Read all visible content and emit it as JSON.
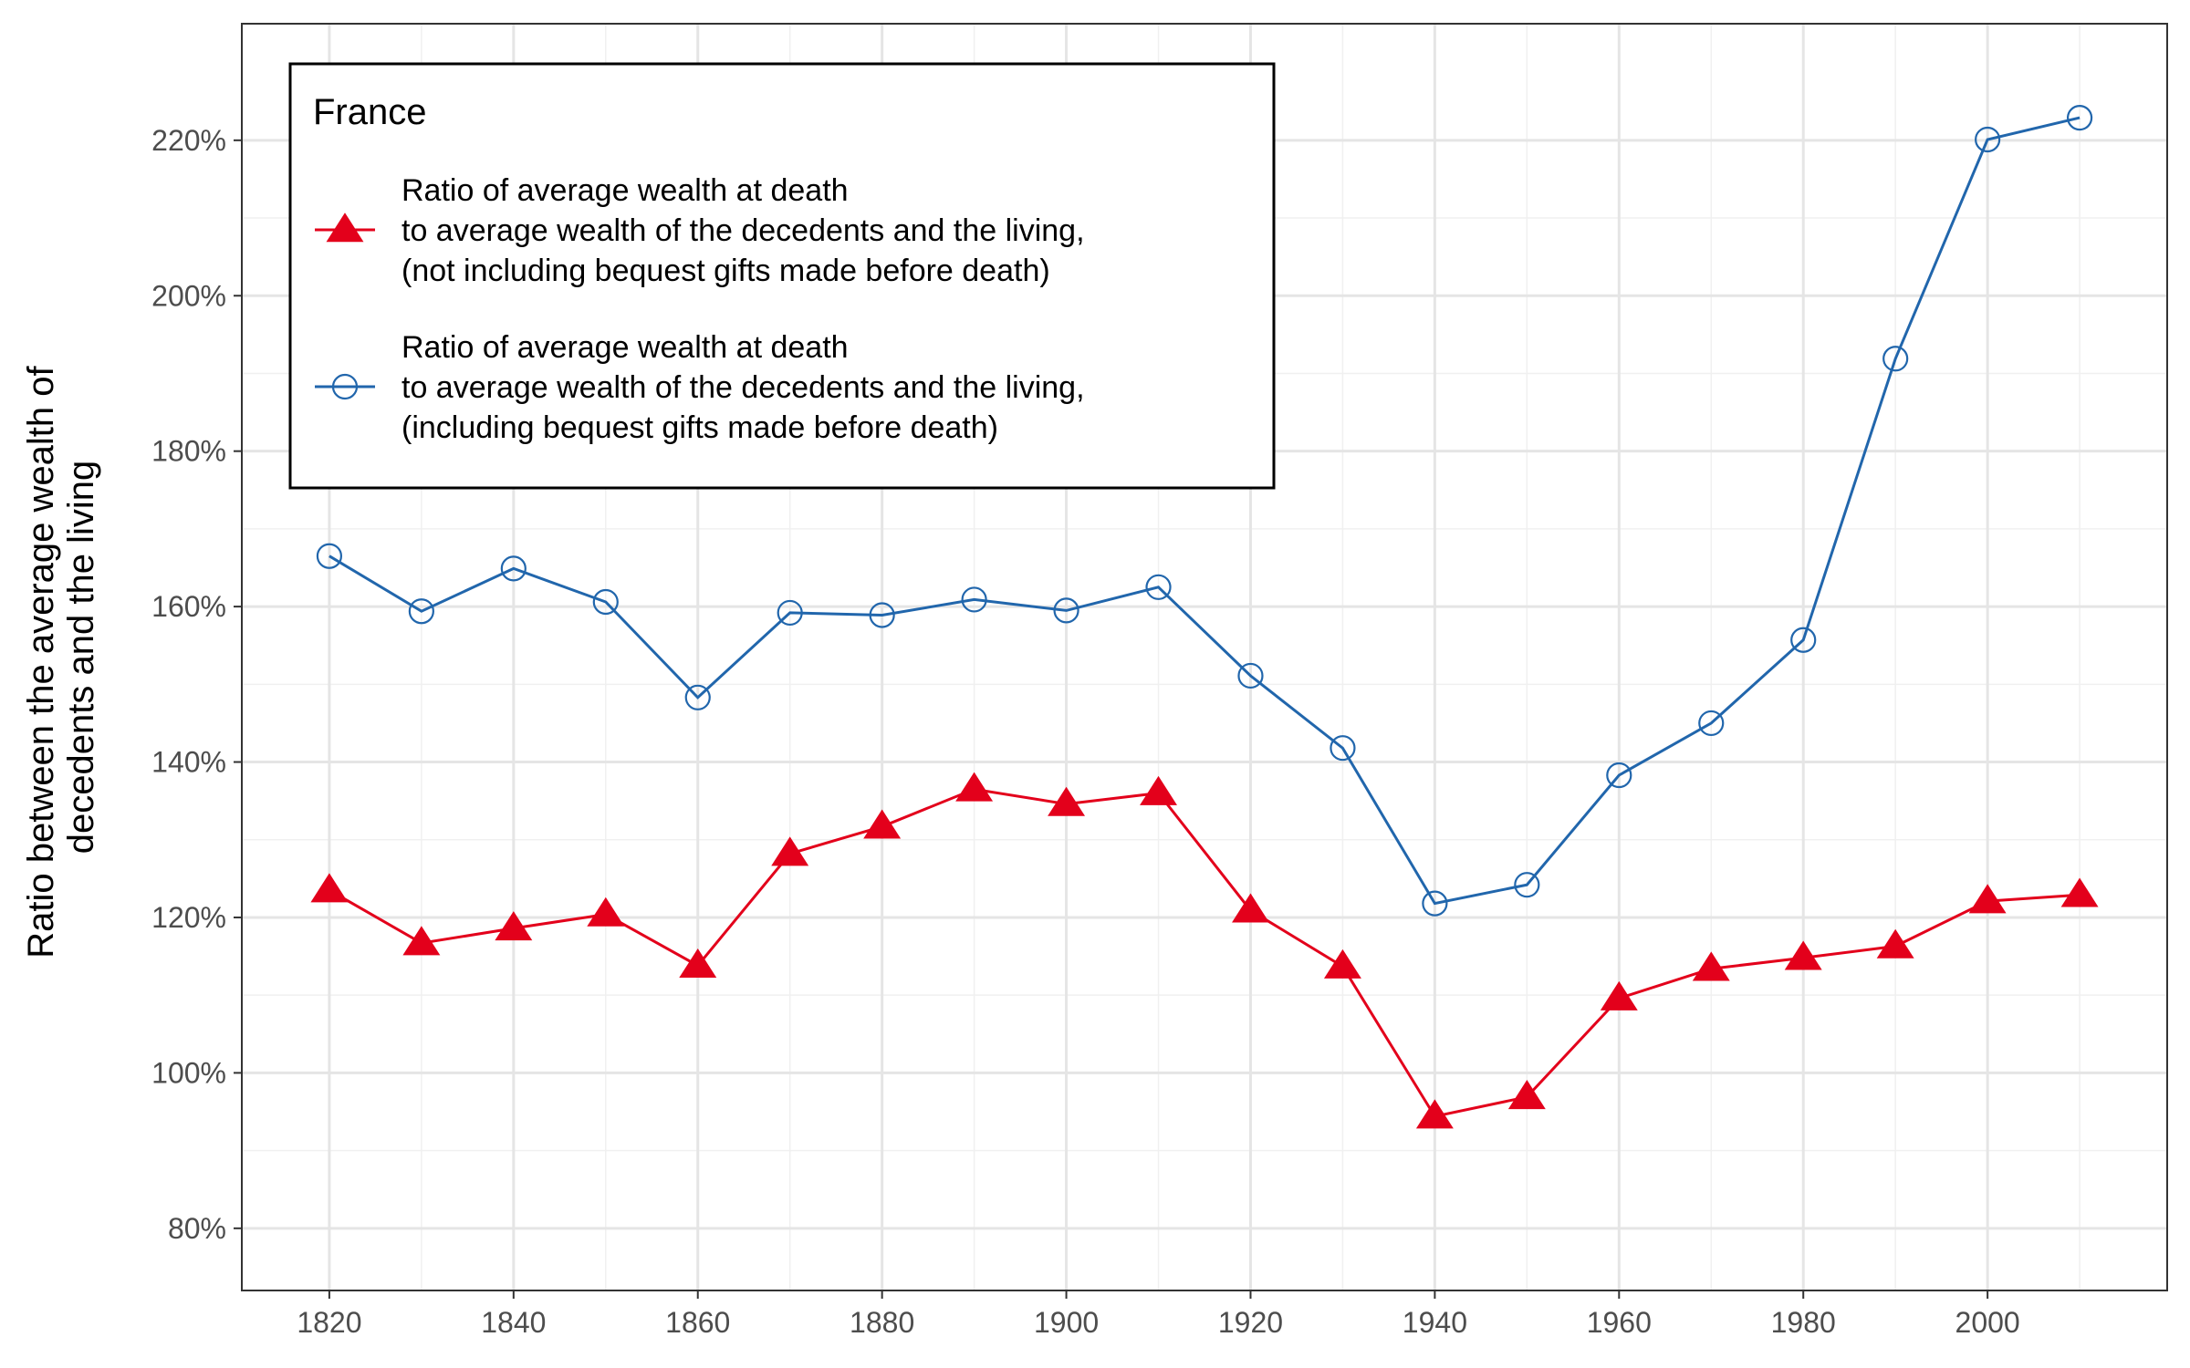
{
  "chart_data": {
    "type": "line",
    "ylabel_lines": [
      "Ratio between the average wealth of",
      "decedents and the living"
    ],
    "xlabel": "",
    "x": [
      1820,
      1830,
      1840,
      1850,
      1860,
      1870,
      1880,
      1890,
      1900,
      1910,
      1920,
      1930,
      1940,
      1950,
      1960,
      1970,
      1980,
      1990,
      2000,
      2010
    ],
    "xlim": [
      1810.5,
      2019.5
    ],
    "ylim": [
      72,
      235
    ],
    "x_ticks": [
      1820,
      1840,
      1860,
      1880,
      1900,
      1920,
      1940,
      1960,
      1980,
      2000
    ],
    "x_tick_labels": [
      "1820",
      "1840",
      "1860",
      "1880",
      "1900",
      "1920",
      "1940",
      "1960",
      "1980",
      "2000"
    ],
    "y_ticks": [
      80,
      100,
      120,
      140,
      160,
      180,
      200,
      220
    ],
    "y_tick_labels": [
      "80%",
      "100%",
      "120%",
      "140%",
      "160%",
      "180%",
      "200%",
      "220%"
    ],
    "grid": true,
    "legend": {
      "title": "France",
      "position": "top-left"
    },
    "series": [
      {
        "key": "excl_gifts",
        "marker": "triangle",
        "color": "#e3001b",
        "label_lines": [
          "Ratio of average wealth at death",
          "to average wealth of the decedents and the living,",
          "(not including bequest gifts made before death)"
        ],
        "values": [
          123.5,
          116.7,
          118.6,
          120.4,
          113.8,
          128.2,
          131.7,
          136.5,
          134.6,
          136.0,
          120.9,
          113.7,
          94.4,
          96.9,
          109.6,
          113.4,
          114.8,
          116.3,
          122.1,
          122.9
        ]
      },
      {
        "key": "incl_gifts",
        "marker": "open-circle",
        "color": "#2166ac",
        "label_lines": [
          "Ratio of average wealth at death",
          "to average wealth of the decedents and the living,",
          "(including bequest gifts made before death)"
        ],
        "values": [
          166.5,
          159.4,
          164.9,
          160.6,
          148.3,
          159.2,
          158.9,
          160.9,
          159.5,
          162.5,
          151.1,
          141.8,
          121.8,
          124.2,
          138.3,
          145.0,
          155.7,
          191.9,
          220.1,
          222.9
        ]
      }
    ]
  }
}
